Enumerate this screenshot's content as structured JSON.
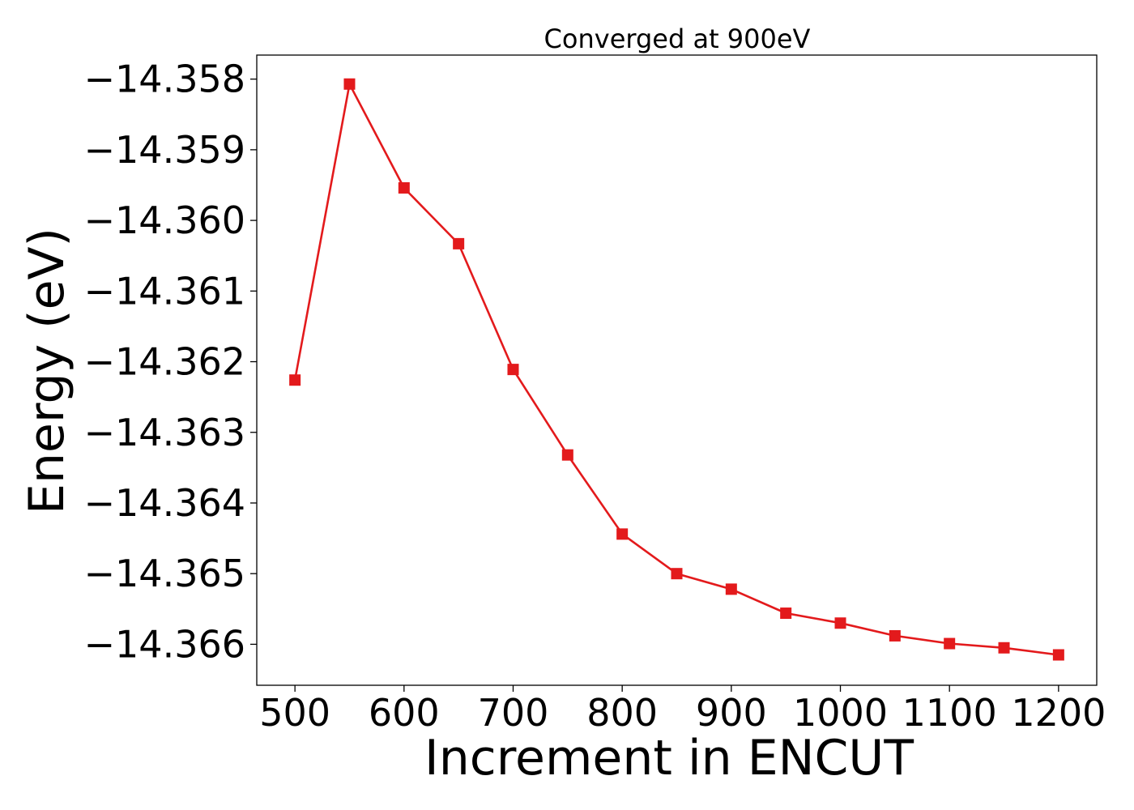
{
  "chart_data": {
    "type": "line",
    "title": "Converged at 900eV",
    "xlabel": "Increment in ENCUT",
    "ylabel": "Energy (eV)",
    "xlim": [
      465,
      1235
    ],
    "ylim": [
      -14.36658,
      -14.35766
    ],
    "xticks": [
      500,
      600,
      700,
      800,
      900,
      1000,
      1100,
      1200
    ],
    "xtick_labels": [
      "500",
      "600",
      "700",
      "800",
      "900",
      "1000",
      "1100",
      "1200"
    ],
    "yticks": [
      -14.358,
      -14.359,
      -14.36,
      -14.361,
      -14.362,
      -14.363,
      -14.364,
      -14.365,
      -14.366
    ],
    "ytick_labels": [
      "−14.358",
      "−14.359",
      "−14.360",
      "−14.361",
      "−14.362",
      "−14.363",
      "−14.364",
      "−14.365",
      "−14.366"
    ],
    "grid": false,
    "series": [
      {
        "color": "#e31a1c",
        "marker": "square",
        "x": [
          500,
          550,
          600,
          650,
          700,
          750,
          800,
          850,
          900,
          950,
          1000,
          1050,
          1100,
          1150,
          1200
        ],
        "y": [
          -14.36226,
          -14.35807,
          -14.35954,
          -14.36033,
          -14.36211,
          -14.36332,
          -14.36444,
          -14.365,
          -14.36522,
          -14.36556,
          -14.3657,
          -14.36588,
          -14.36599,
          -14.36605,
          -14.36615
        ]
      }
    ]
  }
}
